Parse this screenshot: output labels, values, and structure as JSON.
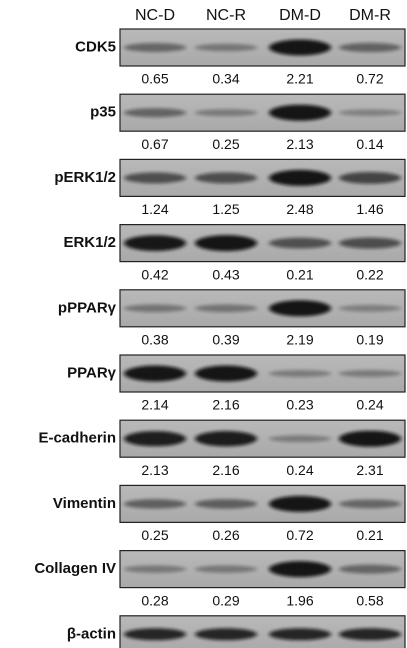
{
  "columns": [
    "NC-D",
    "NC-R",
    "DM-D",
    "DM-R"
  ],
  "rows": [
    {
      "label": "CDK5",
      "values": [
        0.65,
        0.34,
        2.21,
        0.72
      ]
    },
    {
      "label": "p35",
      "values": [
        0.67,
        0.25,
        2.13,
        0.14
      ]
    },
    {
      "label": "pERK1/2",
      "values": [
        1.24,
        1.25,
        2.48,
        1.46
      ]
    },
    {
      "label": "ERK1/2",
      "values": [
        0.42,
        0.43,
        0.21,
        0.22
      ]
    },
    {
      "label": "pPPARγ",
      "values": [
        0.38,
        0.39,
        2.19,
        0.19
      ]
    },
    {
      "label": "PPARγ",
      "values": [
        2.14,
        2.16,
        0.23,
        0.24
      ]
    },
    {
      "label": "E-cadherin",
      "values": [
        2.13,
        2.16,
        0.24,
        2.31
      ]
    },
    {
      "label": "Vimentin",
      "values": [
        0.25,
        0.26,
        0.72,
        0.21
      ]
    },
    {
      "label": "Collagen IV",
      "values": [
        0.28,
        0.29,
        1.96,
        0.58
      ]
    },
    {
      "label": "β-actin"
    }
  ]
}
